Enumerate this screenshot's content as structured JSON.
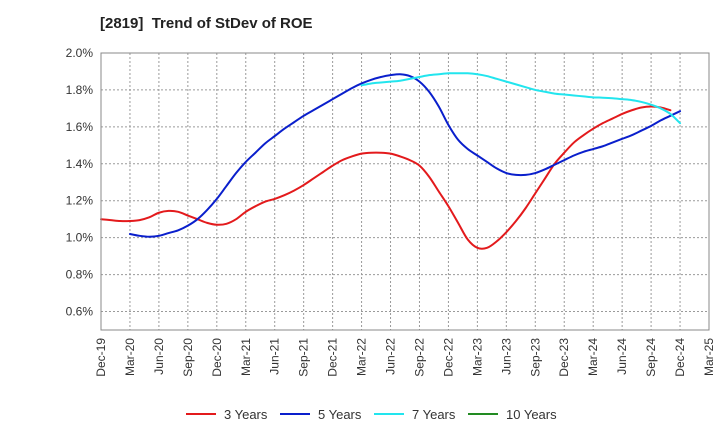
{
  "chart_data": {
    "type": "line",
    "title": "[2819]  Trend of StDev of ROE",
    "xlabel": "",
    "ylabel": "",
    "ylim": [
      0.5,
      2.0
    ],
    "xlim": [
      "2019-12",
      "2025-03"
    ],
    "grid": true,
    "legend_position": "bottom",
    "y_ticks": [
      "0.6%",
      "0.8%",
      "1.0%",
      "1.2%",
      "1.4%",
      "1.6%",
      "1.8%",
      "2.0%"
    ],
    "x_ticks": [
      "Dec-19",
      "Mar-20",
      "Jun-20",
      "Sep-20",
      "Dec-20",
      "Mar-21",
      "Jun-21",
      "Sep-21",
      "Dec-21",
      "Mar-22",
      "Jun-22",
      "Sep-22",
      "Dec-22",
      "Mar-23",
      "Jun-23",
      "Sep-23",
      "Dec-23",
      "Mar-24",
      "Jun-24",
      "Sep-24",
      "Dec-24",
      "Mar-25"
    ],
    "series": [
      {
        "name": "3 Years",
        "color": "#e31a1c",
        "points": [
          [
            "2019-12",
            1.1
          ],
          [
            "2020-01",
            1.095
          ],
          [
            "2020-02",
            1.09
          ],
          [
            "2020-03",
            1.09
          ],
          [
            "2020-04",
            1.095
          ],
          [
            "2020-05",
            1.11
          ],
          [
            "2020-06",
            1.135
          ],
          [
            "2020-07",
            1.145
          ],
          [
            "2020-08",
            1.14
          ],
          [
            "2020-09",
            1.12
          ],
          [
            "2020-10",
            1.1
          ],
          [
            "2020-11",
            1.08
          ],
          [
            "2020-12",
            1.07
          ],
          [
            "2021-01",
            1.075
          ],
          [
            "2021-02",
            1.1
          ],
          [
            "2021-03",
            1.14
          ],
          [
            "2021-04",
            1.17
          ],
          [
            "2021-05",
            1.195
          ],
          [
            "2021-06",
            1.21
          ],
          [
            "2021-07",
            1.23
          ],
          [
            "2021-08",
            1.255
          ],
          [
            "2021-09",
            1.285
          ],
          [
            "2021-10",
            1.32
          ],
          [
            "2021-11",
            1.355
          ],
          [
            "2021-12",
            1.39
          ],
          [
            "2022-01",
            1.42
          ],
          [
            "2022-02",
            1.44
          ],
          [
            "2022-03",
            1.455
          ],
          [
            "2022-04",
            1.46
          ],
          [
            "2022-05",
            1.46
          ],
          [
            "2022-06",
            1.455
          ],
          [
            "2022-07",
            1.44
          ],
          [
            "2022-08",
            1.42
          ],
          [
            "2022-09",
            1.39
          ],
          [
            "2022-10",
            1.33
          ],
          [
            "2022-11",
            1.25
          ],
          [
            "2022-12",
            1.17
          ],
          [
            "2023-01",
            1.08
          ],
          [
            "2023-02",
            0.99
          ],
          [
            "2023-03",
            0.945
          ],
          [
            "2023-04",
            0.945
          ],
          [
            "2023-05",
            0.98
          ],
          [
            "2023-06",
            1.03
          ],
          [
            "2023-07",
            1.09
          ],
          [
            "2023-08",
            1.16
          ],
          [
            "2023-09",
            1.24
          ],
          [
            "2023-10",
            1.32
          ],
          [
            "2023-11",
            1.4
          ],
          [
            "2023-12",
            1.46
          ],
          [
            "2024-01",
            1.515
          ],
          [
            "2024-02",
            1.555
          ],
          [
            "2024-03",
            1.59
          ],
          [
            "2024-04",
            1.62
          ],
          [
            "2024-05",
            1.645
          ],
          [
            "2024-06",
            1.67
          ],
          [
            "2024-07",
            1.69
          ],
          [
            "2024-08",
            1.705
          ],
          [
            "2024-09",
            1.71
          ],
          [
            "2024-10",
            1.705
          ],
          [
            "2024-11",
            1.69
          ]
        ]
      },
      {
        "name": "5 Years",
        "color": "#0a1fcc",
        "points": [
          [
            "2020-03",
            1.02
          ],
          [
            "2020-04",
            1.01
          ],
          [
            "2020-05",
            1.005
          ],
          [
            "2020-06",
            1.01
          ],
          [
            "2020-07",
            1.025
          ],
          [
            "2020-08",
            1.04
          ],
          [
            "2020-09",
            1.065
          ],
          [
            "2020-10",
            1.1
          ],
          [
            "2020-11",
            1.15
          ],
          [
            "2020-12",
            1.21
          ],
          [
            "2021-01",
            1.28
          ],
          [
            "2021-02",
            1.35
          ],
          [
            "2021-03",
            1.41
          ],
          [
            "2021-04",
            1.46
          ],
          [
            "2021-05",
            1.51
          ],
          [
            "2021-06",
            1.55
          ],
          [
            "2021-07",
            1.59
          ],
          [
            "2021-08",
            1.625
          ],
          [
            "2021-09",
            1.66
          ],
          [
            "2021-10",
            1.69
          ],
          [
            "2021-11",
            1.72
          ],
          [
            "2021-12",
            1.75
          ],
          [
            "2022-01",
            1.78
          ],
          [
            "2022-02",
            1.81
          ],
          [
            "2022-03",
            1.835
          ],
          [
            "2022-04",
            1.855
          ],
          [
            "2022-05",
            1.87
          ],
          [
            "2022-06",
            1.88
          ],
          [
            "2022-07",
            1.885
          ],
          [
            "2022-08",
            1.875
          ],
          [
            "2022-09",
            1.845
          ],
          [
            "2022-10",
            1.79
          ],
          [
            "2022-11",
            1.71
          ],
          [
            "2022-12",
            1.61
          ],
          [
            "2023-01",
            1.53
          ],
          [
            "2023-02",
            1.48
          ],
          [
            "2023-03",
            1.445
          ],
          [
            "2023-04",
            1.41
          ],
          [
            "2023-05",
            1.375
          ],
          [
            "2023-06",
            1.35
          ],
          [
            "2023-07",
            1.34
          ],
          [
            "2023-08",
            1.34
          ],
          [
            "2023-09",
            1.35
          ],
          [
            "2023-10",
            1.37
          ],
          [
            "2023-11",
            1.395
          ],
          [
            "2023-12",
            1.42
          ],
          [
            "2024-01",
            1.445
          ],
          [
            "2024-02",
            1.465
          ],
          [
            "2024-03",
            1.48
          ],
          [
            "2024-04",
            1.495
          ],
          [
            "2024-05",
            1.515
          ],
          [
            "2024-06",
            1.535
          ],
          [
            "2024-07",
            1.555
          ],
          [
            "2024-08",
            1.58
          ],
          [
            "2024-09",
            1.605
          ],
          [
            "2024-10",
            1.635
          ],
          [
            "2024-11",
            1.66
          ],
          [
            "2024-12",
            1.685
          ]
        ]
      },
      {
        "name": "7 Years",
        "color": "#22e5ee",
        "points": [
          [
            "2022-03",
            1.825
          ],
          [
            "2022-04",
            1.835
          ],
          [
            "2022-05",
            1.84
          ],
          [
            "2022-06",
            1.845
          ],
          [
            "2022-07",
            1.85
          ],
          [
            "2022-08",
            1.86
          ],
          [
            "2022-09",
            1.87
          ],
          [
            "2022-10",
            1.88
          ],
          [
            "2022-11",
            1.885
          ],
          [
            "2022-12",
            1.89
          ],
          [
            "2023-01",
            1.89
          ],
          [
            "2023-02",
            1.89
          ],
          [
            "2023-03",
            1.885
          ],
          [
            "2023-04",
            1.875
          ],
          [
            "2023-05",
            1.86
          ],
          [
            "2023-06",
            1.845
          ],
          [
            "2023-07",
            1.83
          ],
          [
            "2023-08",
            1.815
          ],
          [
            "2023-09",
            1.8
          ],
          [
            "2023-10",
            1.79
          ],
          [
            "2023-11",
            1.78
          ],
          [
            "2023-12",
            1.775
          ],
          [
            "2024-01",
            1.77
          ],
          [
            "2024-02",
            1.765
          ],
          [
            "2024-03",
            1.76
          ],
          [
            "2024-04",
            1.758
          ],
          [
            "2024-05",
            1.755
          ],
          [
            "2024-06",
            1.75
          ],
          [
            "2024-07",
            1.745
          ],
          [
            "2024-08",
            1.735
          ],
          [
            "2024-09",
            1.72
          ],
          [
            "2024-10",
            1.7
          ],
          [
            "2024-11",
            1.67
          ],
          [
            "2024-12",
            1.62
          ]
        ]
      },
      {
        "name": "10 Years",
        "color": "#228b22",
        "points": []
      }
    ]
  }
}
